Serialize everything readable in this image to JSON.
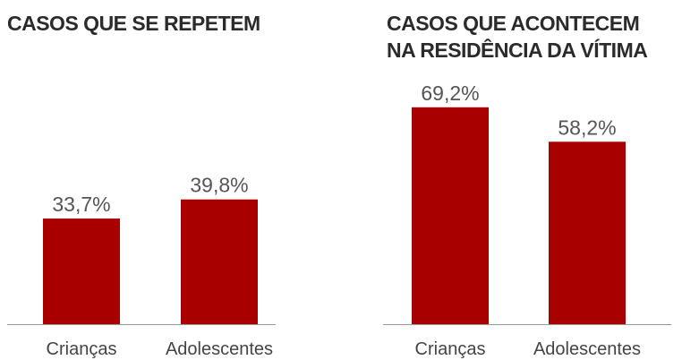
{
  "chart_data": [
    {
      "type": "bar",
      "title": [
        "CASOS QUE SE REPETEM"
      ],
      "categories": [
        "Crianças",
        "Adolescentes"
      ],
      "values": [
        33.7,
        39.8
      ],
      "value_labels": [
        "33,7%",
        "39,8%"
      ],
      "color": "#a80000"
    },
    {
      "type": "bar",
      "title": [
        "CASOS QUE ACONTECEM",
        "NA RESIDÊNCIA DA VÍTIMA"
      ],
      "categories": [
        "Crianças",
        "Adolescentes"
      ],
      "values": [
        69.2,
        58.2
      ],
      "value_labels": [
        "69,2%",
        "58,2%"
      ],
      "color": "#a80000"
    }
  ]
}
